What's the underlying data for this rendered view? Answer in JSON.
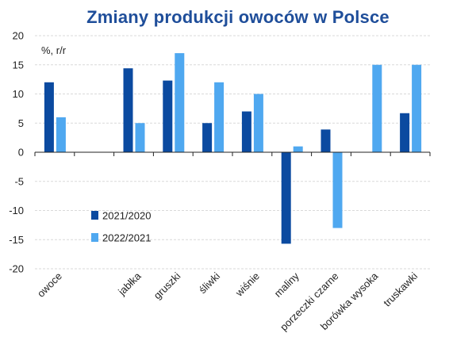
{
  "chart_data": {
    "type": "bar",
    "title": "Zmiany produkcji owoców w Polsce",
    "ylabel": "%, r/r",
    "xlabel": "",
    "ylim": [
      -20,
      20
    ],
    "yticks": [
      20,
      15,
      10,
      5,
      0,
      -5,
      -10,
      -15,
      -20
    ],
    "ytick_labels": [
      "20",
      "15",
      "10",
      "5",
      "0",
      "-5",
      "-10",
      "-15",
      "-20"
    ],
    "grid": true,
    "legend_position": "lower-left inside",
    "categories": [
      "owoce",
      "",
      "jabłka",
      "gruszki",
      "śliwki",
      "wiśnie",
      "maliny",
      "porzeczki czarne",
      "borówka wysoka",
      "truskawki"
    ],
    "series": [
      {
        "name": "2021/2020",
        "color": "#0b4aa0",
        "values": [
          12,
          null,
          14.4,
          12.3,
          5,
          7,
          -15.7,
          3.9,
          null,
          6.7
        ]
      },
      {
        "name": "2022/2021",
        "color": "#4fa8f0",
        "values": [
          6,
          null,
          5,
          17,
          12,
          10,
          1,
          -13,
          15,
          15
        ]
      }
    ]
  }
}
